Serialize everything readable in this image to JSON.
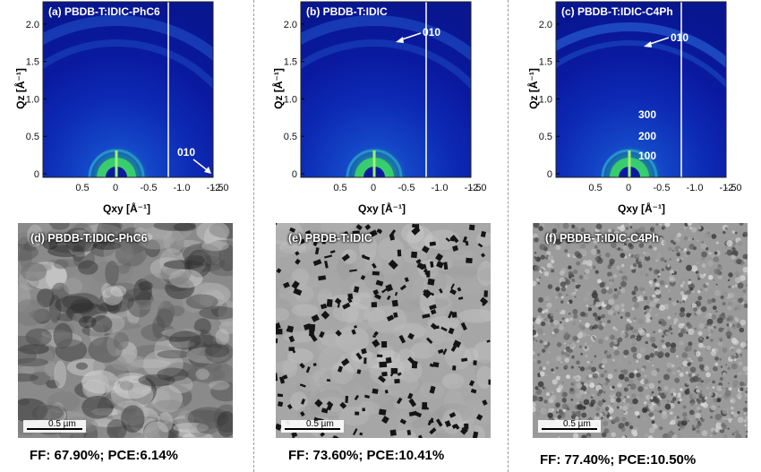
{
  "figure": {
    "giwaxs_panels": [
      {
        "title": "(a) PBDB-T:IDIC-PhC6",
        "y_ticks": [
          "2.0",
          "1.5",
          "1.0",
          "0.5",
          "0"
        ],
        "x_ticks": [
          "0.5",
          "0",
          "-0.5",
          "-1.0",
          "-1.5",
          "-2.0"
        ],
        "annotations": [
          "010"
        ]
      },
      {
        "title": "(b) PBDB-T:IDIC",
        "y_ticks": [
          "2.0",
          "1.5",
          "1.0",
          "0.5",
          "0"
        ],
        "x_ticks": [
          "0.5",
          "0",
          "-0.5",
          "-1.0",
          "-1.5",
          "-2.0"
        ],
        "annotations": [
          "010"
        ]
      },
      {
        "title": "(c) PBDB-T:IDIC-C4Ph",
        "y_ticks": [
          "2.0",
          "1.5",
          "1.0",
          "0.5",
          "0"
        ],
        "x_ticks": [
          "0.5",
          "0",
          "-0.5",
          "-1.0",
          "-1.5",
          "-2.0"
        ],
        "annotations": [
          "010",
          "300",
          "200",
          "100"
        ]
      }
    ],
    "y_axis_label": "Qz [Å⁻¹]",
    "x_axis_label": "Qxy [Å⁻¹]",
    "afm_panels": [
      {
        "title": "(d) PBDB-T:IDIC-PhC6",
        "scale_bar": "0.5 µm",
        "caption": "FF: 67.90%; PCE:6.14%",
        "texture": "cloudy"
      },
      {
        "title": "(e) PBDB-T:IDIC",
        "scale_bar": "0.5 µm",
        "caption": "FF: 73.60%; PCE:10.41%",
        "texture": "pores"
      },
      {
        "title": "(f) PBDB-T:IDIC-C4Ph",
        "scale_bar": "0.5 µm",
        "caption": "FF: 77.40%; PCE:10.50%",
        "texture": "fine"
      }
    ],
    "colors": {
      "giwaxs_background": "#0a1aa0",
      "giwaxs_ring": "#1e5fd0",
      "giwaxs_hot": "#4fe05a",
      "afm_gray": "#8c8c8c"
    }
  }
}
